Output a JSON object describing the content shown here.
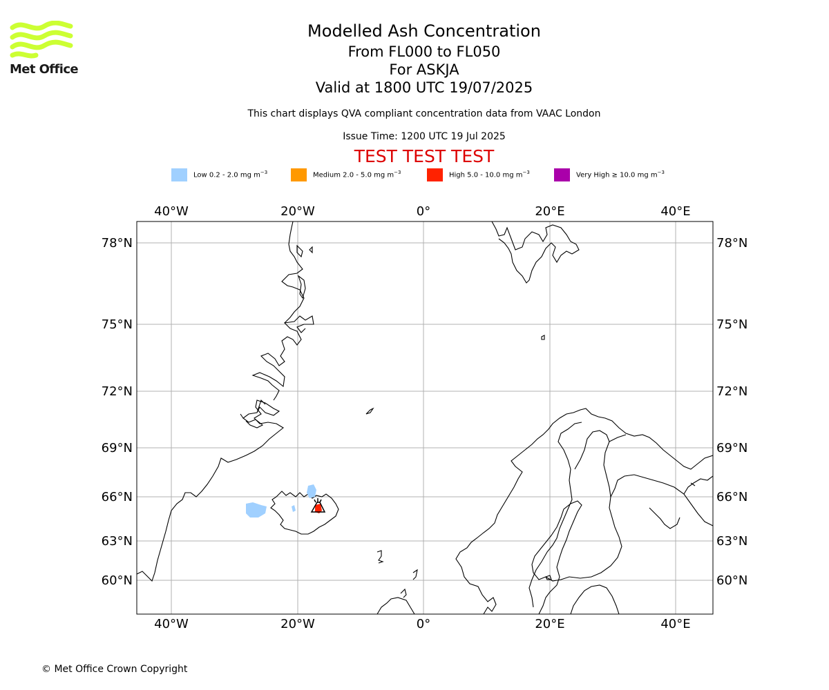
{
  "logo": {
    "text": "Met Office",
    "color": "#ccff33"
  },
  "title": {
    "main": "Modelled Ash Concentration",
    "levels": "From FL000 to FL050",
    "volcano": "For ASKJA",
    "valid": "Valid at 1800 UTC 19/07/2025"
  },
  "note": "This chart displays QVA compliant concentration data from VAAC London",
  "issue_time": "Issue Time: 1200 UTC 19 Jul 2025",
  "test_banner": {
    "text": "TEST TEST TEST",
    "color": "#dd0000"
  },
  "legend": [
    {
      "label": "Low 0.2 - 2.0 mg m",
      "color": "#a0d0ff"
    },
    {
      "label": "Medium 2.0 - 5.0 mg m",
      "color": "#ff9900"
    },
    {
      "label": "High 5.0 - 10.0 mg m",
      "color": "#ff2200"
    },
    {
      "label": "Very High ≥ 10.0 mg m",
      "color": "#aa00aa"
    }
  ],
  "legend_unit_exponent": "−3",
  "map": {
    "lon_labels": [
      "40°W",
      "20°W",
      "0°",
      "20°E",
      "40°E"
    ],
    "lat_labels": [
      "78°N",
      "75°N",
      "72°N",
      "69°N",
      "66°N",
      "63°N",
      "60°N"
    ],
    "grid": true,
    "volcano_marker_icon": "volcano-icon"
  },
  "copyright": "© Met Office Crown Copyright"
}
